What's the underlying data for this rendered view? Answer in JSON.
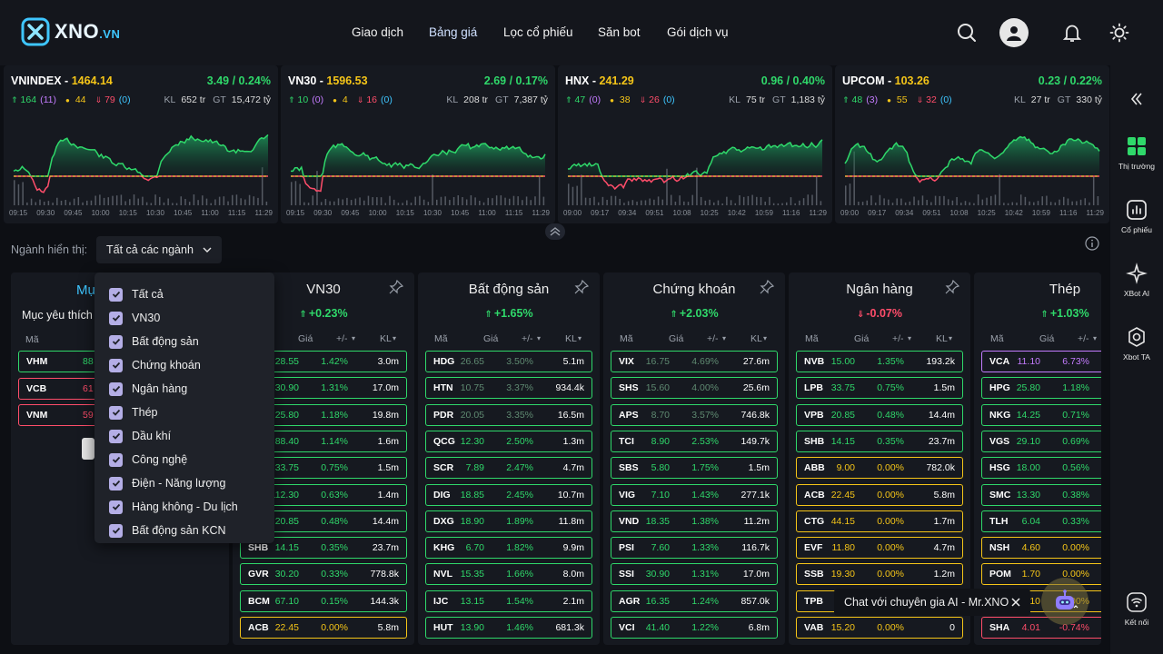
{
  "brand": {
    "name": "XNO",
    ".vn": ".VN",
    "suffix": ".VN"
  },
  "nav": [
    "Giao dịch",
    "Bảng giá",
    "Lọc cổ phiếu",
    "Săn bot",
    "Gói dịch vụ"
  ],
  "indices": [
    {
      "name": "VNINDEX",
      "value": "1464.14",
      "change": "3.49",
      "pct": "0.24%",
      "up": "164",
      "up_ceil": "(11)",
      "ref": "44",
      "down": "79",
      "down_floor": "(0)",
      "kl": "652 tr",
      "gt": "15,472 tỷ",
      "times": [
        "09:15",
        "09:30",
        "09:45",
        "10:00",
        "10:15",
        "10:30",
        "10:45",
        "11:00",
        "11:15",
        "11:29"
      ]
    },
    {
      "name": "VN30",
      "value": "1596.53",
      "change": "2.69",
      "pct": "0.17%",
      "up": "10",
      "up_ceil": "(0)",
      "ref": "4",
      "down": "16",
      "down_floor": "(0)",
      "kl": "208 tr",
      "gt": "7,387 tỷ",
      "times": [
        "09:15",
        "09:30",
        "09:45",
        "10:00",
        "10:15",
        "10:30",
        "10:45",
        "11:00",
        "11:15",
        "11:29"
      ]
    },
    {
      "name": "HNX",
      "value": "241.29",
      "change": "0.96",
      "pct": "0.40%",
      "up": "47",
      "up_ceil": "(0)",
      "ref": "38",
      "down": "26",
      "down_floor": "(0)",
      "kl": "75 tr",
      "gt": "1,183 tỷ",
      "times": [
        "09:00",
        "09:17",
        "09:34",
        "09:51",
        "10:08",
        "10:25",
        "10:42",
        "10:59",
        "11:16",
        "11:29"
      ]
    },
    {
      "name": "UPCOM",
      "value": "103.26",
      "change": "0.23",
      "pct": "0.22%",
      "up": "48",
      "up_ceil": "(3)",
      "ref": "55",
      "down": "32",
      "down_floor": "(0)",
      "kl": "27 tr",
      "gt": "330 tỷ",
      "times": [
        "09:00",
        "09:17",
        "09:34",
        "09:51",
        "10:08",
        "10:25",
        "10:42",
        "10:59",
        "11:16",
        "11:29"
      ]
    }
  ],
  "labels": {
    "kl": "KL",
    "gt": "GT",
    "sector_filter": "Ngành hiển thị:",
    "sector_value": "Tất cả các ngành",
    "col_ma": "Mã",
    "col_gia": "Giá",
    "col_chg": "+/-",
    "col_kl": "KL",
    "watch_title": "Mục",
    "watch_sub": "Mục yêu thích",
    "chat": "Chat với chuyên gia AI - Mr.XNO"
  },
  "sidebar": [
    {
      "label": "Thị trường"
    },
    {
      "label": "Cổ phiếu"
    },
    {
      "label": "XBot AI"
    },
    {
      "label": "Xbot TA"
    },
    {
      "label": "Kết nối"
    }
  ],
  "dropdown": [
    "Tất cả",
    "VN30",
    "Bất động sản",
    "Chứng khoán",
    "Ngân hàng",
    "Thép",
    "Dầu khí",
    "Công nghệ",
    "Điện - Năng lượng",
    "Hàng không - Du lịch",
    "Bất động sản KCN"
  ],
  "watchlist": [
    {
      "sym": "VHM",
      "price": "88",
      "color": "#2fd86a"
    },
    {
      "sym": "VCB",
      "price": "61",
      "color": "#ff4d6a"
    },
    {
      "sym": "VNM",
      "price": "59",
      "color": "#ff4d6a"
    }
  ],
  "sectors": [
    {
      "title": "VN30",
      "pct": "+0.23%",
      "dir": "up",
      "rows": [
        {
          "sym": "",
          "price": "28.55",
          "pct": "1.42%",
          "vol": "3.0m",
          "c": "#2fd86a"
        },
        {
          "sym": "",
          "price": "30.90",
          "pct": "1.31%",
          "vol": "17.0m",
          "c": "#2fd86a"
        },
        {
          "sym": "",
          "price": "25.80",
          "pct": "1.18%",
          "vol": "19.8m",
          "c": "#2fd86a"
        },
        {
          "sym": "",
          "price": "88.40",
          "pct": "1.14%",
          "vol": "1.6m",
          "c": "#2fd86a"
        },
        {
          "sym": "",
          "price": "33.75",
          "pct": "0.75%",
          "vol": "1.5m",
          "c": "#2fd86a"
        },
        {
          "sym": "",
          "price": "112.30",
          "pct": "0.63%",
          "vol": "1.4m",
          "c": "#2fd86a"
        },
        {
          "sym": "",
          "price": "20.85",
          "pct": "0.48%",
          "vol": "14.4m",
          "c": "#2fd86a"
        },
        {
          "sym": "SHB",
          "price": "14.15",
          "pct": "0.35%",
          "vol": "23.7m",
          "c": "#2fd86a"
        },
        {
          "sym": "GVR",
          "price": "30.20",
          "pct": "0.33%",
          "vol": "778.8k",
          "c": "#2fd86a"
        },
        {
          "sym": "BCM",
          "price": "67.10",
          "pct": "0.15%",
          "vol": "144.3k",
          "c": "#2fd86a"
        },
        {
          "sym": "ACB",
          "price": "22.45",
          "pct": "0.00%",
          "vol": "5.8m",
          "c": "#f5c518"
        }
      ]
    },
    {
      "title": "Bất động sản",
      "pct": "+1.65%",
      "dir": "up",
      "rows": [
        {
          "sym": "HDG",
          "price": "26.65",
          "pct": "3.50%",
          "vol": "5.1m",
          "c": "#2fd86a",
          "dim": true
        },
        {
          "sym": "HTN",
          "price": "10.75",
          "pct": "3.37%",
          "vol": "934.4k",
          "c": "#2fd86a",
          "dim": true
        },
        {
          "sym": "PDR",
          "price": "20.05",
          "pct": "3.35%",
          "vol": "16.5m",
          "c": "#2fd86a",
          "dim": true
        },
        {
          "sym": "QCG",
          "price": "12.30",
          "pct": "2.50%",
          "vol": "1.3m",
          "c": "#2fd86a"
        },
        {
          "sym": "SCR",
          "price": "7.89",
          "pct": "2.47%",
          "vol": "4.7m",
          "c": "#2fd86a"
        },
        {
          "sym": "DIG",
          "price": "18.85",
          "pct": "2.45%",
          "vol": "10.7m",
          "c": "#2fd86a"
        },
        {
          "sym": "DXG",
          "price": "18.90",
          "pct": "1.89%",
          "vol": "11.8m",
          "c": "#2fd86a"
        },
        {
          "sym": "KHG",
          "price": "6.70",
          "pct": "1.82%",
          "vol": "9.9m",
          "c": "#2fd86a"
        },
        {
          "sym": "NVL",
          "price": "15.35",
          "pct": "1.66%",
          "vol": "8.0m",
          "c": "#2fd86a"
        },
        {
          "sym": "IJC",
          "price": "13.15",
          "pct": "1.54%",
          "vol": "2.1m",
          "c": "#2fd86a"
        },
        {
          "sym": "HUT",
          "price": "13.90",
          "pct": "1.46%",
          "vol": "681.3k",
          "c": "#2fd86a"
        }
      ]
    },
    {
      "title": "Chứng khoán",
      "pct": "+2.03%",
      "dir": "up",
      "rows": [
        {
          "sym": "VIX",
          "price": "16.75",
          "pct": "4.69%",
          "vol": "27.6m",
          "c": "#2fd86a",
          "dim": true
        },
        {
          "sym": "SHS",
          "price": "15.60",
          "pct": "4.00%",
          "vol": "25.6m",
          "c": "#2fd86a",
          "dim": true
        },
        {
          "sym": "APS",
          "price": "8.70",
          "pct": "3.57%",
          "vol": "746.8k",
          "c": "#2fd86a",
          "dim": true
        },
        {
          "sym": "TCI",
          "price": "8.90",
          "pct": "2.53%",
          "vol": "149.7k",
          "c": "#2fd86a"
        },
        {
          "sym": "SBS",
          "price": "5.80",
          "pct": "1.75%",
          "vol": "1.5m",
          "c": "#2fd86a"
        },
        {
          "sym": "VIG",
          "price": "7.10",
          "pct": "1.43%",
          "vol": "277.1k",
          "c": "#2fd86a"
        },
        {
          "sym": "VND",
          "price": "18.35",
          "pct": "1.38%",
          "vol": "11.2m",
          "c": "#2fd86a"
        },
        {
          "sym": "PSI",
          "price": "7.60",
          "pct": "1.33%",
          "vol": "116.7k",
          "c": "#2fd86a"
        },
        {
          "sym": "SSI",
          "price": "30.90",
          "pct": "1.31%",
          "vol": "17.0m",
          "c": "#2fd86a"
        },
        {
          "sym": "AGR",
          "price": "16.35",
          "pct": "1.24%",
          "vol": "857.0k",
          "c": "#2fd86a"
        },
        {
          "sym": "VCI",
          "price": "41.40",
          "pct": "1.22%",
          "vol": "6.8m",
          "c": "#2fd86a"
        }
      ]
    },
    {
      "title": "Ngân hàng",
      "pct": "-0.07%",
      "dir": "down",
      "rows": [
        {
          "sym": "NVB",
          "price": "15.00",
          "pct": "1.35%",
          "vol": "193.2k",
          "c": "#2fd86a"
        },
        {
          "sym": "LPB",
          "price": "33.75",
          "pct": "0.75%",
          "vol": "1.5m",
          "c": "#2fd86a"
        },
        {
          "sym": "VPB",
          "price": "20.85",
          "pct": "0.48%",
          "vol": "14.4m",
          "c": "#2fd86a"
        },
        {
          "sym": "SHB",
          "price": "14.15",
          "pct": "0.35%",
          "vol": "23.7m",
          "c": "#2fd86a"
        },
        {
          "sym": "ABB",
          "price": "9.00",
          "pct": "0.00%",
          "vol": "782.0k",
          "c": "#f5c518"
        },
        {
          "sym": "ACB",
          "price": "22.45",
          "pct": "0.00%",
          "vol": "5.8m",
          "c": "#f5c518"
        },
        {
          "sym": "CTG",
          "price": "44.15",
          "pct": "0.00%",
          "vol": "1.7m",
          "c": "#f5c518"
        },
        {
          "sym": "EVF",
          "price": "11.80",
          "pct": "0.00%",
          "vol": "4.7m",
          "c": "#f5c518"
        },
        {
          "sym": "SSB",
          "price": "19.30",
          "pct": "0.00%",
          "vol": "1.2m",
          "c": "#f5c518"
        },
        {
          "sym": "TPB",
          "price": "",
          "pct": "",
          "vol": "",
          "c": "#f5c518"
        },
        {
          "sym": "VAB",
          "price": "15.20",
          "pct": "0.00%",
          "vol": "0",
          "c": "#f5c518"
        }
      ]
    },
    {
      "title": "Thép",
      "pct": "+1.03%",
      "dir": "up",
      "rows": [
        {
          "sym": "VCA",
          "price": "11.10",
          "pct": "6.73%",
          "vol": "",
          "c": "#c47cff"
        },
        {
          "sym": "HPG",
          "price": "25.80",
          "pct": "1.18%",
          "vol": "",
          "c": "#2fd86a"
        },
        {
          "sym": "NKG",
          "price": "14.25",
          "pct": "0.71%",
          "vol": "",
          "c": "#2fd86a"
        },
        {
          "sym": "VGS",
          "price": "29.10",
          "pct": "0.69%",
          "vol": "",
          "c": "#2fd86a"
        },
        {
          "sym": "HSG",
          "price": "18.00",
          "pct": "0.56%",
          "vol": "",
          "c": "#2fd86a"
        },
        {
          "sym": "SMC",
          "price": "13.30",
          "pct": "0.38%",
          "vol": "",
          "c": "#2fd86a"
        },
        {
          "sym": "TLH",
          "price": "6.04",
          "pct": "0.33%",
          "vol": "",
          "c": "#2fd86a"
        },
        {
          "sym": "NSH",
          "price": "4.60",
          "pct": "0.00%",
          "vol": "",
          "c": "#f5c518"
        },
        {
          "sym": "POM",
          "price": "1.70",
          "pct": "0.00%",
          "vol": "",
          "c": "#f5c518"
        },
        {
          "sym": "",
          "price": "14.10",
          "pct": "0.00%",
          "vol": "",
          "c": "#f5c518"
        },
        {
          "sym": "SHA",
          "price": "4.01",
          "pct": "-0.74%",
          "vol": "",
          "c": "#ff4d6a"
        }
      ]
    }
  ]
}
